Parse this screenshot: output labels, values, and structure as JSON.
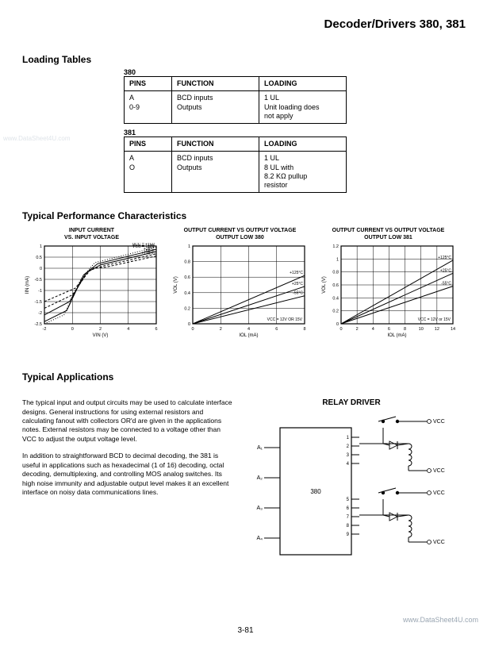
{
  "header": {
    "title": "Decoder/Drivers 380, 381"
  },
  "loading": {
    "heading": "Loading Tables",
    "tables": [
      {
        "label": "380",
        "cols": [
          "PINS",
          "FUNCTION",
          "LOADING"
        ],
        "rows": [
          [
            "A\n0-9",
            "BCD inputs\nOutputs",
            "1 UL\nUnit loading does\nnot apply"
          ]
        ]
      },
      {
        "label": "381",
        "cols": [
          "PINS",
          "FUNCTION",
          "LOADING"
        ],
        "rows": [
          [
            "A\nO",
            "BCD inputs\nOutputs",
            "1 UL\n8 UL with\n8.2 KΩ pullup\nresistor"
          ]
        ]
      }
    ]
  },
  "perf": {
    "heading": "Typical Performance Characteristics",
    "charts": [
      {
        "title": "INPUT CURRENT\nVS. INPUT VOLTAGE",
        "xlabel": "VIN (V)",
        "ylabel": "IIN (mA)",
        "xlim": [
          -2,
          6
        ],
        "ylim": [
          -2.5,
          1
        ],
        "xticks": [
          -2,
          0,
          2,
          4,
          6
        ],
        "yticks": [
          -2.5,
          -2,
          -1.5,
          -1,
          -0.5,
          0,
          0.5,
          1
        ],
        "curves": [
          {
            "label": "VCC = +12V",
            "pts": [
              [
                -2,
                -2.4
              ],
              [
                -0.4,
                -1.9
              ],
              [
                0.8,
                -0.3
              ],
              [
                1.8,
                0.2
              ],
              [
                6,
                0.85
              ]
            ],
            "style": "solid"
          },
          {
            "label": "+25°C",
            "pts": [
              [
                -2,
                -2.1
              ],
              [
                -0.2,
                -1.5
              ],
              [
                1,
                -0.2
              ],
              [
                2,
                0.15
              ],
              [
                6,
                0.75
              ]
            ],
            "style": "solid"
          },
          {
            "label": "-55°C",
            "pts": [
              [
                -2,
                -1.8
              ],
              [
                0,
                -1.2
              ],
              [
                1.2,
                -0.1
              ],
              [
                2.2,
                0.1
              ],
              [
                6,
                0.65
              ]
            ],
            "style": "dash"
          },
          {
            "label": "+125°C",
            "pts": [
              [
                -2,
                -1.5
              ],
              [
                0.2,
                -0.9
              ],
              [
                1.4,
                0
              ],
              [
                2.4,
                0.05
              ],
              [
                6,
                0.55
              ]
            ],
            "style": "dash"
          },
          {
            "label": "VCC = +15V",
            "pts": [
              [
                -2,
                -2.5
              ],
              [
                -0.6,
                -2.1
              ],
              [
                0.6,
                -0.5
              ],
              [
                1.6,
                0.25
              ],
              [
                6,
                0.95
              ]
            ],
            "style": "dot"
          }
        ],
        "bg": "#ffffff",
        "grid": "#000000",
        "line": "#000000"
      },
      {
        "title": "OUTPUT CURRENT VS OUTPUT VOLTAGE\nOUTPUT LOW    380",
        "xlabel": "IOL (mA)",
        "ylabel": "VOL (V)",
        "xlim": [
          0,
          8
        ],
        "ylim": [
          0,
          1
        ],
        "xticks": [
          0,
          2,
          4,
          6,
          8
        ],
        "yticks": [
          0,
          0.2,
          0.4,
          0.6,
          0.8,
          1.0
        ],
        "curves": [
          {
            "label": "+125°C",
            "pts": [
              [
                0,
                0
              ],
              [
                8,
                0.62
              ]
            ],
            "style": "solid"
          },
          {
            "label": "+25°C",
            "pts": [
              [
                0,
                0
              ],
              [
                8,
                0.48
              ]
            ],
            "style": "solid"
          },
          {
            "label": "-55°C",
            "pts": [
              [
                0,
                0
              ],
              [
                8,
                0.36
              ]
            ],
            "style": "solid"
          }
        ],
        "note": "VCC = 12V OR 15V",
        "bg": "#ffffff",
        "grid": "#000000",
        "line": "#000000"
      },
      {
        "title": "OUTPUT CURRENT VS OUTPUT VOLTAGE\nOUTPUT LOW    381",
        "xlabel": "IOL (mA)",
        "ylabel": "VOL (V)",
        "xlim": [
          0,
          14
        ],
        "ylim": [
          0,
          1.2
        ],
        "xticks": [
          0,
          2,
          4,
          6,
          8,
          10,
          12,
          14
        ],
        "yticks": [
          0,
          0.2,
          0.4,
          0.6,
          0.8,
          1.0,
          1.2
        ],
        "curves": [
          {
            "label": "+125°C",
            "pts": [
              [
                0,
                0
              ],
              [
                14,
                0.98
              ]
            ],
            "style": "solid"
          },
          {
            "label": "+25°C",
            "pts": [
              [
                0,
                0
              ],
              [
                14,
                0.78
              ]
            ],
            "style": "solid"
          },
          {
            "label": "-55°C",
            "pts": [
              [
                0,
                0
              ],
              [
                14,
                0.58
              ]
            ],
            "style": "solid"
          }
        ],
        "note": "VCC = 12V or 15V",
        "bg": "#ffffff",
        "grid": "#000000",
        "line": "#000000"
      }
    ]
  },
  "apps": {
    "heading": "Typical Applications",
    "para1": "The typical input and output circuits may be used to calculate interface designs. General instructions for using external resistors and calculating fanout with collectors OR'd are given in the applications notes. External resistors may be connected to a voltage other than VCC to adjust the output voltage level.",
    "para2": "In addition to straightforward BCD to decimal decoding, the 381 is useful in applications such as hexadecimal (1 of 16) decoding, octal decoding, demultiplexing, and controlling MOS analog switches. Its high noise immunity and adjustable output level makes it an excellent interface on noisy data communications lines.",
    "relay_title": "RELAY DRIVER",
    "relay": {
      "chip_label": "380",
      "inputs": [
        "A₁",
        "A₂",
        "A₃",
        "A₄"
      ],
      "outputs_top": [
        "1",
        "2",
        "3",
        "4"
      ],
      "outputs_bot": [
        "5",
        "6",
        "7",
        "8",
        "9"
      ],
      "vcc": "VCC"
    }
  },
  "page_number": "3-81",
  "watermark_right": "www.DataSheet4U.com",
  "watermark_left": "www.DataSheet4U.com"
}
